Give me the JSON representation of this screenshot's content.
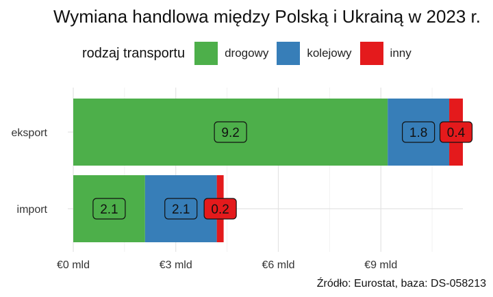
{
  "chart_data": {
    "type": "bar",
    "orientation": "horizontal",
    "stacked": true,
    "title": "Wymiana handlowa między Polską i Ukrainą w 2023 r.",
    "categories": [
      "eksport",
      "import"
    ],
    "series": [
      {
        "name": "drogowy",
        "color": "#4daf4a",
        "values": [
          9.2,
          2.1
        ],
        "labels": [
          "9.2",
          "2.1"
        ]
      },
      {
        "name": "kolejowy",
        "color": "#377eb8",
        "values": [
          1.8,
          2.1
        ],
        "labels": [
          "1.8",
          "2.1"
        ]
      },
      {
        "name": "inny",
        "color": "#e41a1c",
        "values": [
          0.4,
          0.2
        ],
        "labels": [
          "0.4",
          "0.2"
        ]
      }
    ],
    "legend_title": "rodzaj transportu",
    "legend_position": "top",
    "x_ticks": [
      {
        "value": 0,
        "label": "€0 mld"
      },
      {
        "value": 3,
        "label": "€3 mld"
      },
      {
        "value": 6,
        "label": "€6 mld"
      },
      {
        "value": 9,
        "label": "€9 mld"
      }
    ],
    "xlim": [
      0,
      11.4
    ],
    "grid": true,
    "caption": "Źródło: Eurostat, baza: DS-058213"
  }
}
